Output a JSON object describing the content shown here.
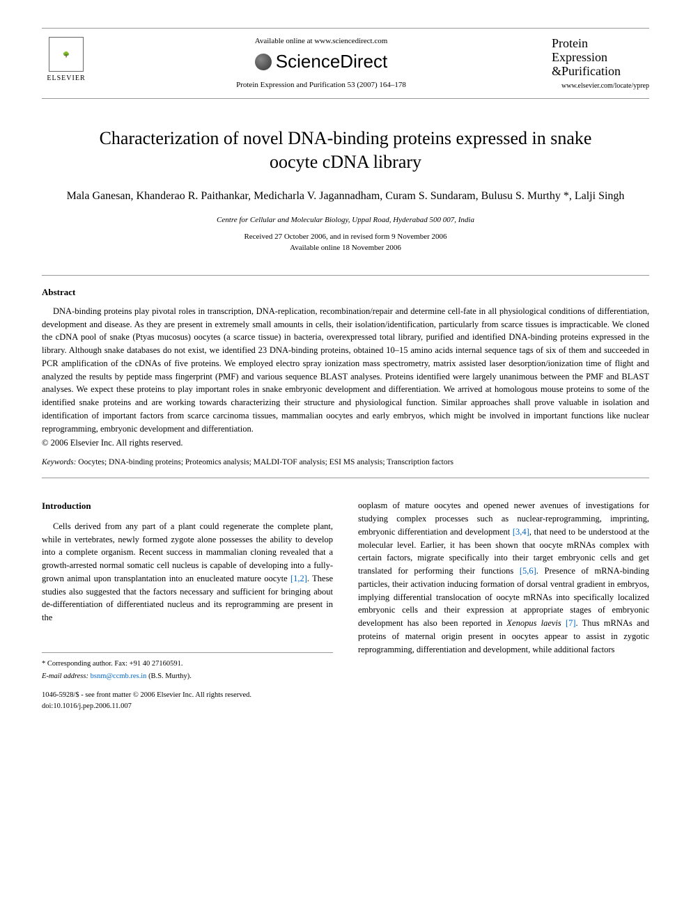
{
  "header": {
    "publisher_name": "ELSEVIER",
    "available_text": "Available online at www.sciencedirect.com",
    "platform_name": "ScienceDirect",
    "citation": "Protein Expression and Purification 53 (2007) 164–178",
    "journal_line1": "Protein",
    "journal_line2": "Expression",
    "journal_line3": "&Purification",
    "journal_url": "www.elsevier.com/locate/yprep"
  },
  "article": {
    "title": "Characterization of novel DNA-binding proteins expressed in snake oocyte cDNA library",
    "authors": "Mala Ganesan, Khanderao R. Paithankar, Medicharla V. Jagannadham, Curam S. Sundaram, Bulusu S. Murthy *, Lalji Singh",
    "affiliation": "Centre for Cellular and Molecular Biology, Uppal Road, Hyderabad 500 007, India",
    "received": "Received 27 October 2006, and in revised form 9 November 2006",
    "available": "Available online 18 November 2006"
  },
  "abstract": {
    "heading": "Abstract",
    "text": "DNA-binding proteins play pivotal roles in transcription, DNA-replication, recombination/repair and determine cell-fate in all physiological conditions of differentiation, development and disease. As they are present in extremely small amounts in cells, their isolation/identification, particularly from scarce tissues is impracticable. We cloned the cDNA pool of snake (Ptyas mucosus) oocytes (a scarce tissue) in bacteria, overexpressed total library, purified and identified DNA-binding proteins expressed in the library. Although snake databases do not exist, we identified 23 DNA-binding proteins, obtained 10–15 amino acids internal sequence tags of six of them and succeeded in PCR amplification of the cDNAs of five proteins. We employed electro spray ionization mass spectrometry, matrix assisted laser desorption/ionization time of flight and analyzed the results by peptide mass fingerprint (PMF) and various sequence BLAST analyses. Proteins identified were largely unanimous between the PMF and BLAST analyses. We expect these proteins to play important roles in snake embryonic development and differentiation. We arrived at homologous mouse proteins to some of the identified snake proteins and are working towards characterizing their structure and physiological function. Similar approaches shall prove valuable in isolation and identification of important factors from scarce carcinoma tissues, mammalian oocytes and early embryos, which might be involved in important functions like nuclear reprogramming, embryonic development and differentiation.",
    "copyright": "© 2006 Elsevier Inc. All rights reserved."
  },
  "keywords": {
    "label": "Keywords:",
    "text": " Oocytes; DNA-binding proteins; Proteomics analysis; MALDI-TOF analysis; ESI MS analysis; Transcription factors"
  },
  "introduction": {
    "heading": "Introduction",
    "col1_part1": "Cells derived from any part of a plant could regenerate the complete plant, while in vertebrates, newly formed zygote alone possesses the ability to develop into a complete organism. Recent success in mammalian cloning revealed that a growth-arrested normal somatic cell nucleus is capable of developing into a fully-grown animal upon transplantation into an enucleated mature oocyte ",
    "ref12": "[1,2]",
    "col1_part2": ". These studies also suggested that the factors necessary and sufficient for bringing about de-differentiation of differentiated nucleus and its reprogramming are present in the",
    "col2_part1": "ooplasm of mature oocytes and opened newer avenues of investigations for studying complex processes such as nuclear-reprogramming, imprinting, embryonic differentiation and development ",
    "ref34": "[3,4]",
    "col2_part2": ", that need to be understood at the molecular level. Earlier, it has been shown that oocyte mRNAs complex with certain factors, migrate specifically into their target embryonic cells and get translated for performing their functions ",
    "ref56": "[5,6]",
    "col2_part3": ". Presence of mRNA-binding particles, their activation inducing formation of dorsal ventral gradient in embryos, implying differential translocation of oocyte mRNAs into specifically localized embryonic cells and their expression at appropriate stages of embryonic development has also been reported in ",
    "xenopus": "Xenopus laevis",
    "ref7": "[7]",
    "col2_part4": ". Thus mRNAs and proteins of maternal origin present in oocytes appear to assist in zygotic reprogramming, differentiation and development, while additional factors"
  },
  "footer": {
    "corresponding": "* Corresponding author. Fax: +91 40 27160591.",
    "email_label": "E-mail address:",
    "email": " bsnm@ccmb.res.in ",
    "email_name": "(B.S. Murthy).",
    "copyright_line": "1046-5928/$ - see front matter © 2006 Elsevier Inc. All rights reserved.",
    "doi": "doi:10.1016/j.pep.2006.11.007"
  }
}
